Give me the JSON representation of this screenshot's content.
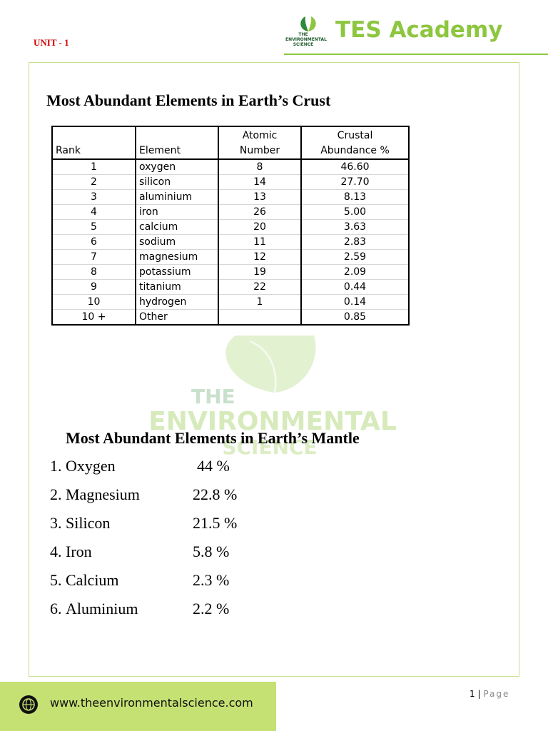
{
  "header": {
    "unit": "UNIT - 1",
    "logo_lines": [
      "THE",
      "ENVIRONMENTAL",
      "SCIENCE"
    ],
    "brand": "TES Academy"
  },
  "crust": {
    "title": "Most Abundant Elements in Earth’s Crust",
    "table": {
      "headers": [
        {
          "lines": [
            "Rank"
          ]
        },
        {
          "lines": [
            "Element"
          ]
        },
        {
          "lines": [
            "Atomic",
            "Number"
          ]
        },
        {
          "lines": [
            "Crustal",
            "Abundance %"
          ]
        }
      ],
      "rows": [
        [
          "1",
          "oxygen",
          "8",
          "46.60"
        ],
        [
          "2",
          "silicon",
          "14",
          "27.70"
        ],
        [
          "3",
          "aluminium",
          "13",
          "8.13"
        ],
        [
          "4",
          "iron",
          "26",
          "5.00"
        ],
        [
          "5",
          "calcium",
          "20",
          "3.63"
        ],
        [
          "6",
          "sodium",
          "11",
          "2.83"
        ],
        [
          "7",
          "magnesium",
          "12",
          "2.59"
        ],
        [
          "8",
          "potassium",
          "19",
          "2.09"
        ],
        [
          "9",
          "titanium",
          "22",
          "0.44"
        ],
        [
          "10",
          "hydrogen",
          "1",
          "0.14"
        ],
        [
          "10 +",
          "Other",
          null,
          "0.85"
        ]
      ]
    }
  },
  "watermark": [
    "THE",
    "ENVIRONMENTAL",
    "SCIENCE"
  ],
  "mantle": {
    "title": "Most Abundant Elements in Earth’s Mantle",
    "items": [
      {
        "marker": "1.",
        "name": "Oxygen",
        "value": "44 %"
      },
      {
        "marker": "2.",
        "name": "Magnesium",
        "value": "22.8 %"
      },
      {
        "marker": "3.",
        "name": "Silicon",
        "value": "21.5 %"
      },
      {
        "marker": "4.",
        "name": "Iron",
        "value": "5.8 %"
      },
      {
        "marker": "5.",
        "name": "Calcium",
        "value": "2.3 %"
      },
      {
        "marker": "6.",
        "name": "Aluminium",
        "value": "2.2 %"
      }
    ]
  },
  "footer": {
    "url": "www.theenvironmentalscience.com",
    "page_number": "1",
    "page_separator": "|",
    "page_label": "Page"
  }
}
